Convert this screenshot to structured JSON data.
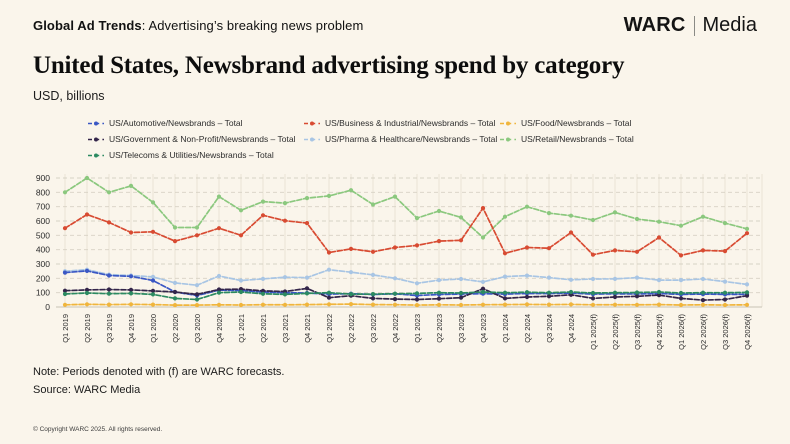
{
  "header": {
    "kicker_bold": "Global Ad Trends",
    "kicker_rest": ": Advertising’s breaking news problem",
    "brand_name": "WARC",
    "brand_suffix": "Media"
  },
  "title": "United States, Newsbrand advertising spend by category",
  "subtitle": "USD, billions",
  "notes": {
    "note": "Note: Periods denoted with (f) are WARC forecasts.",
    "source": "Source: WARC Media"
  },
  "footer": {
    "copyright": "© Copyright WARC 2025. All rights reserved."
  },
  "colors": {
    "background": "#faf5eb",
    "text": "#161616",
    "grid_vertical": "#e7e2d4",
    "grid_horizontal": "#d7d2c4",
    "axis_zero_line": "#c8c3b5",
    "tick_label": "#2b2b2b"
  },
  "chart_data": {
    "type": "line",
    "title": "United States, Newsbrand advertising spend by category",
    "ylabel": "USD, billions",
    "xlabel": "",
    "ylim": [
      0,
      900
    ],
    "yticks": [
      0,
      100,
      200,
      300,
      400,
      500,
      600,
      700,
      800,
      900
    ],
    "grid": true,
    "legend_position": "top",
    "categories": [
      "Q1 2019",
      "Q2 2019",
      "Q3 2019",
      "Q4 2019",
      "Q1 2020",
      "Q2 2020",
      "Q3 2020",
      "Q4 2020",
      "Q1 2021",
      "Q2 2021",
      "Q3 2021",
      "Q4 2021",
      "Q1 2022",
      "Q2 2022",
      "Q3 2022",
      "Q4 2022",
      "Q1 2023",
      "Q2 2023",
      "Q3 2023",
      "Q4 2023",
      "Q1 2024",
      "Q2 2024",
      "Q3 2024",
      "Q4 2024",
      "Q1 2025(f)",
      "Q2 2025(f)",
      "Q3 2025(f)",
      "Q4 2025(f)",
      "Q1 2026(f)",
      "Q2 2026(f)",
      "Q3 2026(f)",
      "Q4 2026(f)"
    ],
    "series": [
      {
        "name": "US/Automotive/Newsbrands – Total",
        "color": "#3a57c4",
        "values": [
          240,
          252,
          220,
          214,
          185,
          105,
          80,
          118,
          115,
          105,
          100,
          98,
          90,
          93,
          87,
          92,
          80,
          87,
          90,
          93,
          90,
          94,
          94,
          97,
          90,
          92,
          91,
          94,
          88,
          90,
          88,
          88
        ]
      },
      {
        "name": "US/Business & Industrial/Newsbrands – Total",
        "color": "#d84b32",
        "values": [
          550,
          645,
          590,
          520,
          525,
          460,
          500,
          550,
          500,
          640,
          602,
          585,
          380,
          405,
          385,
          415,
          430,
          460,
          465,
          690,
          375,
          415,
          410,
          520,
          365,
          395,
          385,
          485,
          360,
          395,
          390,
          515
        ]
      },
      {
        "name": "US/Food/Newsbrands – Total",
        "color": "#f0b53c",
        "values": [
          15,
          19,
          17,
          19,
          17,
          13,
          13,
          15,
          14,
          16,
          15,
          17,
          19,
          20,
          17,
          16,
          13,
          15,
          14,
          16,
          17,
          18,
          17,
          18,
          15,
          16,
          15,
          17,
          14,
          15,
          14,
          15
        ]
      },
      {
        "name": "US/Government & Non-Profit/Newsbrands – Total",
        "color": "#33254a",
        "values": [
          114,
          119,
          122,
          119,
          112,
          105,
          88,
          122,
          125,
          112,
          108,
          130,
          65,
          79,
          60,
          55,
          52,
          58,
          65,
          128,
          60,
          70,
          75,
          85,
          60,
          70,
          75,
          83,
          60,
          48,
          52,
          79
        ]
      },
      {
        "name": "US/Pharma & Healthcare/Newsbrands – Total",
        "color": "#a8c5e4",
        "values": [
          250,
          260,
          226,
          220,
          210,
          168,
          152,
          216,
          185,
          196,
          208,
          205,
          260,
          243,
          224,
          200,
          165,
          188,
          195,
          175,
          212,
          219,
          205,
          190,
          195,
          196,
          205,
          188,
          188,
          195,
          177,
          158
        ]
      },
      {
        "name": "US/Retail/Newsbrands – Total",
        "color": "#8bc87e",
        "values": [
          800,
          900,
          800,
          845,
          730,
          555,
          555,
          770,
          675,
          735,
          725,
          760,
          775,
          815,
          715,
          770,
          620,
          670,
          625,
          485,
          630,
          700,
          655,
          637,
          607,
          660,
          614,
          595,
          567,
          630,
          585,
          545
        ]
      },
      {
        "name": "US/Telecoms & Utilities/Newsbrands – Total",
        "color": "#2c8a61",
        "values": [
          91,
          98,
          93,
          95,
          88,
          60,
          52,
          100,
          105,
          92,
          88,
          95,
          100,
          90,
          90,
          93,
          95,
          100,
          98,
          105,
          100,
          103,
          100,
          105,
          98,
          100,
          101,
          105,
          98,
          100,
          100,
          102
        ]
      }
    ]
  }
}
